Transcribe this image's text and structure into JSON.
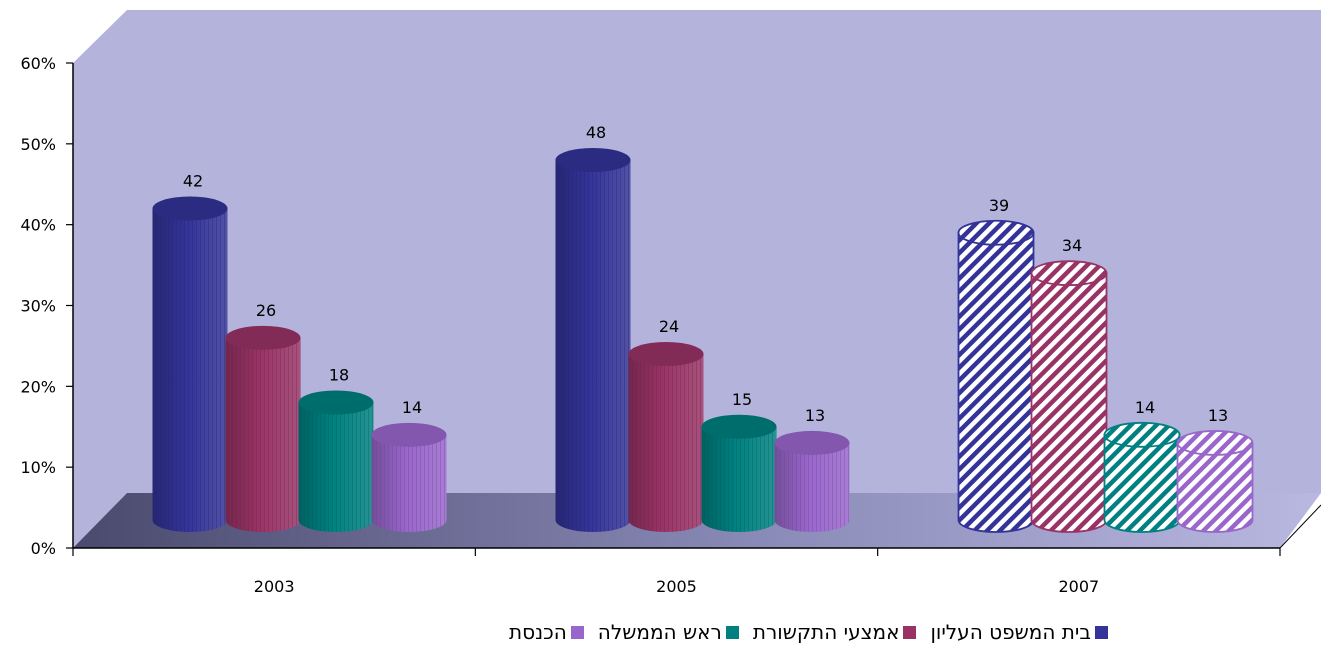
{
  "chart_data": {
    "type": "bar",
    "categories": [
      "2003",
      "2005",
      "2007"
    ],
    "series": [
      {
        "name": "בית המשפט העליון",
        "values": [
          42,
          48,
          39
        ],
        "color": "#333399"
      },
      {
        "name": "אמצעי התקשורת",
        "values": [
          26,
          24,
          34
        ],
        "color": "#993366"
      },
      {
        "name": "ראש הממשלה",
        "values": [
          18,
          15,
          14
        ],
        "color": "#008080"
      },
      {
        "name": "הכנסת",
        "values": [
          14,
          13,
          13
        ],
        "color": "#9966cc"
      }
    ],
    "yticks": [
      "0%",
      "10%",
      "20%",
      "30%",
      "40%",
      "50%",
      "60%"
    ],
    "ylim": [
      0,
      60
    ],
    "hatched_category": "2007",
    "legend_position": "bottom",
    "background_wall_color": "#b3b3dc",
    "floor_color": "#6e6e96"
  }
}
